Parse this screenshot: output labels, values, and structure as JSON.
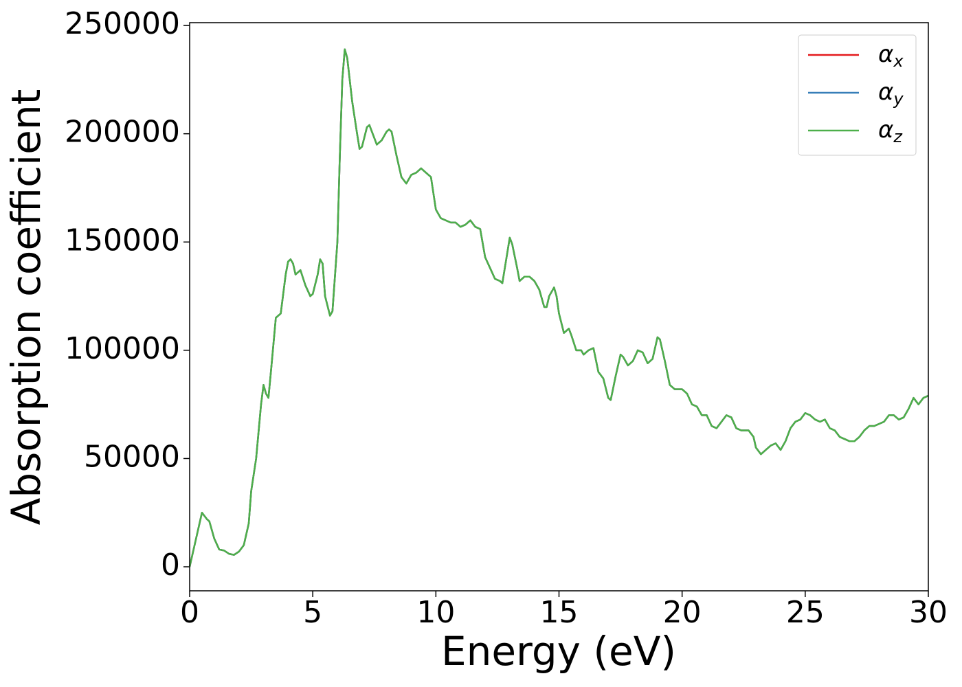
{
  "chart_data": {
    "type": "line",
    "xlabel": "Energy (eV)",
    "ylabel": "Absorption coefficient",
    "x": [
      0,
      0.2,
      0.5,
      0.7,
      0.8,
      1.0,
      1.2,
      1.4,
      1.6,
      1.8,
      2.0,
      2.2,
      2.4,
      2.5,
      2.7,
      2.9,
      3.0,
      3.1,
      3.2,
      3.3,
      3.5,
      3.6,
      3.7,
      3.9,
      4.0,
      4.1,
      4.2,
      4.3,
      4.5,
      4.7,
      4.9,
      5.0,
      5.2,
      5.3,
      5.4,
      5.5,
      5.7,
      5.8,
      6.0,
      6.1,
      6.2,
      6.3,
      6.4,
      6.6,
      6.8,
      6.9,
      7.0,
      7.2,
      7.3,
      7.5,
      7.6,
      7.8,
      8.0,
      8.1,
      8.2,
      8.4,
      8.6,
      8.8,
      9.0,
      9.2,
      9.4,
      9.6,
      9.8,
      10.0,
      10.2,
      10.4,
      10.6,
      10.8,
      11.0,
      11.2,
      11.4,
      11.6,
      11.8,
      12.0,
      12.2,
      12.4,
      12.6,
      12.7,
      12.8,
      13.0,
      13.1,
      13.3,
      13.4,
      13.6,
      13.8,
      14.0,
      14.2,
      14.4,
      14.5,
      14.6,
      14.8,
      14.9,
      15.0,
      15.2,
      15.4,
      15.5,
      15.7,
      15.9,
      16.0,
      16.2,
      16.4,
      16.6,
      16.8,
      17.0,
      17.1,
      17.3,
      17.5,
      17.6,
      17.8,
      18.0,
      18.2,
      18.4,
      18.6,
      18.8,
      19.0,
      19.1,
      19.3,
      19.5,
      19.7,
      20.0,
      20.2,
      20.4,
      20.6,
      20.8,
      21.0,
      21.2,
      21.4,
      21.6,
      21.8,
      22.0,
      22.2,
      22.4,
      22.7,
      22.9,
      23.0,
      23.2,
      23.4,
      23.6,
      23.8,
      24.0,
      24.2,
      24.4,
      24.6,
      24.8,
      25.0,
      25.2,
      25.4,
      25.6,
      25.8,
      26.0,
      26.2,
      26.4,
      26.6,
      26.8,
      27.0,
      27.2,
      27.4,
      27.6,
      27.8,
      28.0,
      28.2,
      28.4,
      28.6,
      28.8,
      29.0,
      29.2,
      29.4,
      29.6,
      29.8,
      30.0
    ],
    "series": [
      {
        "name": "αx",
        "color": "#e41a1c",
        "values": [
          0,
          10000,
          25000,
          22000,
          21000,
          13000,
          8000,
          7500,
          6000,
          5500,
          7000,
          10000,
          20000,
          35000,
          50000,
          75000,
          84000,
          80000,
          78000,
          90000,
          115000,
          116000,
          117000,
          135000,
          141000,
          142000,
          140000,
          135000,
          137000,
          130000,
          125000,
          126000,
          135000,
          142000,
          140000,
          125000,
          116000,
          118000,
          150000,
          190000,
          225000,
          239000,
          235000,
          215000,
          200000,
          193000,
          194000,
          203000,
          204000,
          198000,
          195000,
          197000,
          201000,
          202000,
          201000,
          190000,
          180000,
          177000,
          181000,
          182000,
          184000,
          182000,
          180000,
          165000,
          161000,
          160000,
          159000,
          159000,
          157000,
          158000,
          160000,
          157000,
          156000,
          143000,
          138000,
          133000,
          132000,
          131000,
          138000,
          152000,
          149000,
          138000,
          132000,
          134000,
          134000,
          132000,
          128000,
          120000,
          120000,
          125000,
          129000,
          125000,
          117000,
          108000,
          110000,
          107000,
          100000,
          100000,
          98000,
          100000,
          101000,
          90000,
          87000,
          78000,
          77000,
          88000,
          98000,
          97000,
          93000,
          95000,
          100000,
          99000,
          94000,
          96000,
          106000,
          105000,
          95000,
          84000,
          82000,
          82000,
          80000,
          75000,
          74000,
          70000,
          70000,
          65000,
          64000,
          67000,
          70000,
          69000,
          64000,
          63000,
          63000,
          60000,
          55000,
          52000,
          54000,
          56000,
          57000,
          54000,
          58000,
          64000,
          67000,
          68000,
          71000,
          70000,
          68000,
          67000,
          68000,
          64000,
          63000,
          60000,
          59000,
          58000,
          58000,
          60000,
          63000,
          65000,
          65000,
          66000,
          67000,
          70000,
          70000,
          68000,
          69000,
          73000,
          78000,
          75000,
          78000,
          79000
        ]
      },
      {
        "name": "αy",
        "color": "#377eb8",
        "values": [
          0,
          10000,
          25000,
          22000,
          21000,
          13000,
          8000,
          7500,
          6000,
          5500,
          7000,
          10000,
          20000,
          35000,
          50000,
          75000,
          84000,
          80000,
          78000,
          90000,
          115000,
          116000,
          117000,
          135000,
          141000,
          142000,
          140000,
          135000,
          137000,
          130000,
          125000,
          126000,
          135000,
          142000,
          140000,
          125000,
          116000,
          118000,
          150000,
          190000,
          225000,
          239000,
          235000,
          215000,
          200000,
          193000,
          194000,
          203000,
          204000,
          198000,
          195000,
          197000,
          201000,
          202000,
          201000,
          190000,
          180000,
          177000,
          181000,
          182000,
          184000,
          182000,
          180000,
          165000,
          161000,
          160000,
          159000,
          159000,
          157000,
          158000,
          160000,
          157000,
          156000,
          143000,
          138000,
          133000,
          132000,
          131000,
          138000,
          152000,
          149000,
          138000,
          132000,
          134000,
          134000,
          132000,
          128000,
          120000,
          120000,
          125000,
          129000,
          125000,
          117000,
          108000,
          110000,
          107000,
          100000,
          100000,
          98000,
          100000,
          101000,
          90000,
          87000,
          78000,
          77000,
          88000,
          98000,
          97000,
          93000,
          95000,
          100000,
          99000,
          94000,
          96000,
          106000,
          105000,
          95000,
          84000,
          82000,
          82000,
          80000,
          75000,
          74000,
          70000,
          70000,
          65000,
          64000,
          67000,
          70000,
          69000,
          64000,
          63000,
          63000,
          60000,
          55000,
          52000,
          54000,
          56000,
          57000,
          54000,
          58000,
          64000,
          67000,
          68000,
          71000,
          70000,
          68000,
          67000,
          68000,
          64000,
          63000,
          60000,
          59000,
          58000,
          58000,
          60000,
          63000,
          65000,
          65000,
          66000,
          67000,
          70000,
          70000,
          68000,
          69000,
          73000,
          78000,
          75000,
          78000,
          79000
        ]
      },
      {
        "name": "αz",
        "color": "#4daf4a",
        "values": [
          0,
          10000,
          25000,
          22000,
          21000,
          13000,
          8000,
          7500,
          6000,
          5500,
          7000,
          10000,
          20000,
          35000,
          50000,
          75000,
          84000,
          80000,
          78000,
          90000,
          115000,
          116000,
          117000,
          135000,
          141000,
          142000,
          140000,
          135000,
          137000,
          130000,
          125000,
          126000,
          135000,
          142000,
          140000,
          125000,
          116000,
          118000,
          150000,
          190000,
          225000,
          239000,
          235000,
          215000,
          200000,
          193000,
          194000,
          203000,
          204000,
          198000,
          195000,
          197000,
          201000,
          202000,
          201000,
          190000,
          180000,
          177000,
          181000,
          182000,
          184000,
          182000,
          180000,
          165000,
          161000,
          160000,
          159000,
          159000,
          157000,
          158000,
          160000,
          157000,
          156000,
          143000,
          138000,
          133000,
          132000,
          131000,
          138000,
          152000,
          149000,
          138000,
          132000,
          134000,
          134000,
          132000,
          128000,
          120000,
          120000,
          125000,
          129000,
          125000,
          117000,
          108000,
          110000,
          107000,
          100000,
          100000,
          98000,
          100000,
          101000,
          90000,
          87000,
          78000,
          77000,
          88000,
          98000,
          97000,
          93000,
          95000,
          100000,
          99000,
          94000,
          96000,
          106000,
          105000,
          95000,
          84000,
          82000,
          82000,
          80000,
          75000,
          74000,
          70000,
          70000,
          65000,
          64000,
          67000,
          70000,
          69000,
          64000,
          63000,
          63000,
          60000,
          55000,
          52000,
          54000,
          56000,
          57000,
          54000,
          58000,
          64000,
          67000,
          68000,
          71000,
          70000,
          68000,
          67000,
          68000,
          64000,
          63000,
          60000,
          59000,
          58000,
          58000,
          60000,
          63000,
          65000,
          65000,
          66000,
          67000,
          70000,
          70000,
          68000,
          69000,
          73000,
          78000,
          75000,
          78000,
          79000
        ]
      }
    ],
    "xlim": [
      0,
      30
    ],
    "xticks": [
      0,
      5,
      10,
      15,
      20,
      25,
      30
    ],
    "ylim": [
      -11100,
      251300
    ],
    "yticks": [
      0,
      50000,
      100000,
      150000,
      200000,
      250000
    ],
    "legend": "upper right"
  }
}
